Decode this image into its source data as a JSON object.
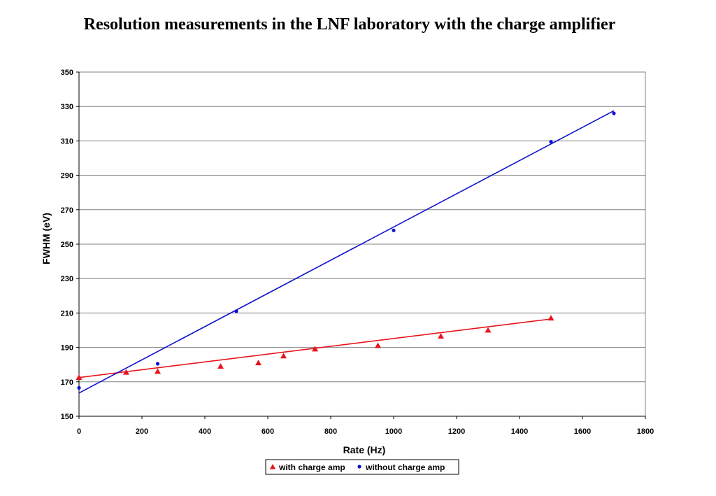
{
  "chart_data": {
    "type": "scatter",
    "title": "Resolution measurements in the LNF laboratory with the charge amplifier",
    "xlabel": "Rate (Hz)",
    "ylabel": "FWHM (eV)",
    "xlim": [
      0,
      1800
    ],
    "ylim": [
      150,
      350
    ],
    "x_ticks": [
      0,
      200,
      400,
      600,
      800,
      1000,
      1200,
      1400,
      1600,
      1800
    ],
    "y_ticks": [
      150,
      170,
      190,
      210,
      230,
      250,
      270,
      290,
      310,
      330,
      350
    ],
    "grid": "horizontal",
    "legend_position": "bottom",
    "series": [
      {
        "name": "with charge amp",
        "color": "#e8141b",
        "marker": "triangle",
        "points": [
          [
            0,
            172.5
          ],
          [
            150,
            175.5
          ],
          [
            250,
            176
          ],
          [
            450,
            179
          ],
          [
            570,
            181
          ],
          [
            650,
            185
          ],
          [
            750,
            189
          ],
          [
            950,
            191
          ],
          [
            1150,
            196.5
          ],
          [
            1300,
            200
          ],
          [
            1500,
            207
          ]
        ],
        "trendline": [
          [
            0,
            172.5
          ],
          [
            1500,
            206.5
          ]
        ]
      },
      {
        "name": "without charge amp",
        "color": "#1010d0",
        "marker": "circle",
        "points": [
          [
            0,
            166.5
          ],
          [
            250,
            180.5
          ],
          [
            500,
            211
          ],
          [
            1000,
            258
          ],
          [
            1500,
            309.5
          ],
          [
            1700,
            326
          ]
        ],
        "trendline": [
          [
            0,
            163.5
          ],
          [
            1700,
            327.5
          ]
        ]
      }
    ]
  }
}
